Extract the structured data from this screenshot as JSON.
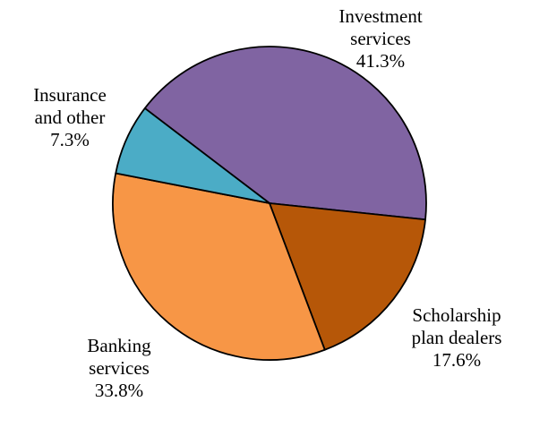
{
  "chart_data": {
    "type": "pie",
    "start_angle_deg_clockwise_from_top": 307.3,
    "slices": [
      {
        "label_lines": [
          "Investment",
          "services"
        ],
        "value": 41.3,
        "value_label": "41.3%",
        "color": "#8064A2"
      },
      {
        "label_lines": [
          "Scholarship",
          "plan dealers"
        ],
        "value": 17.6,
        "value_label": "17.6%",
        "color": "#B65708"
      },
      {
        "label_lines": [
          "Banking",
          "services"
        ],
        "value": 33.8,
        "value_label": "33.8%",
        "color": "#F79646"
      },
      {
        "label_lines": [
          "Insurance",
          "and other"
        ],
        "value": 7.3,
        "value_label": "7.3%",
        "color": "#4BACC6"
      }
    ]
  }
}
